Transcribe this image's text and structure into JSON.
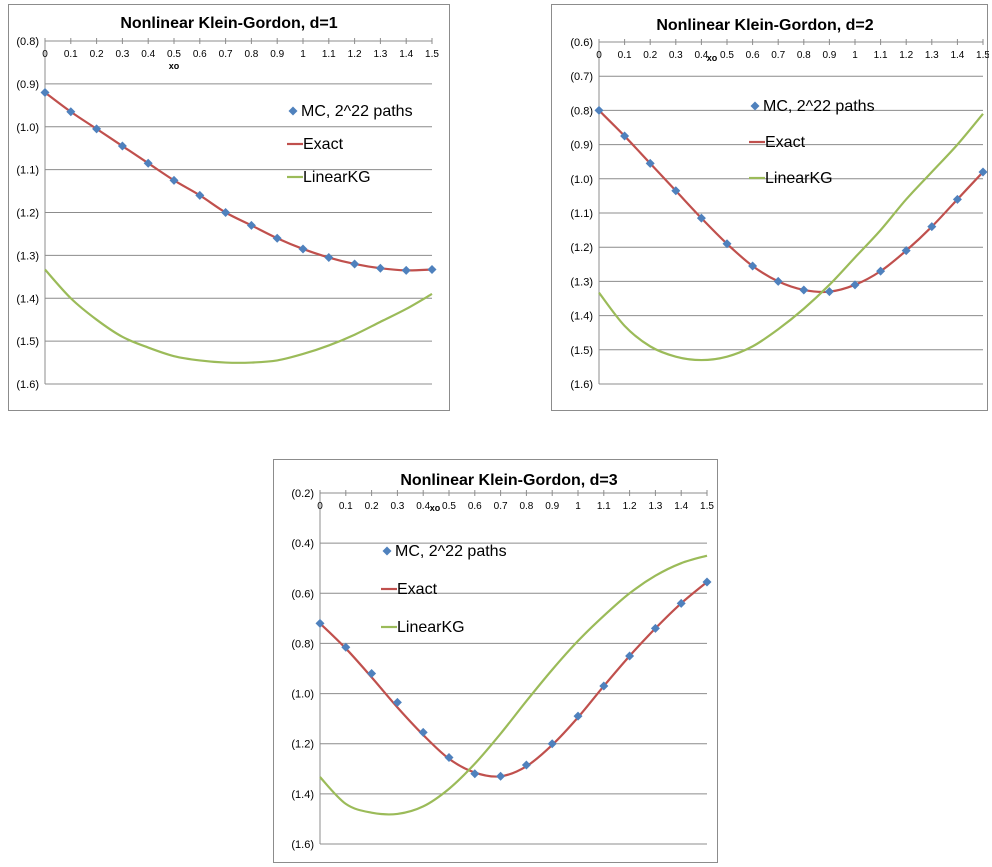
{
  "colors": {
    "mc": "#4f81bd",
    "exact": "#c0504d",
    "linear": "#9bbb59"
  },
  "legend": [
    "MC, 2^22 paths",
    "Exact",
    "LinearKG"
  ],
  "chart_data": [
    {
      "type": "line",
      "title": "Nonlinear Klein-Gordon, d=1",
      "xlabel": "xo",
      "x": [
        0,
        0.1,
        0.2,
        0.3,
        0.4,
        0.5,
        0.6,
        0.7,
        0.8,
        0.9,
        1,
        1.1,
        1.2,
        1.3,
        1.4,
        1.5
      ],
      "x_tick_labels": [
        "0",
        "0.1",
        "0.2",
        "0.3",
        "0.4",
        "0.5",
        "0.6",
        "0.7",
        "0.8",
        "0.9",
        "1",
        "1.1",
        "1.2",
        "1.3",
        "1.4",
        "1.5"
      ],
      "ylim": [
        -1.6,
        -0.8
      ],
      "y_ticks": [
        -0.8,
        -0.9,
        -1.0,
        -1.1,
        -1.2,
        -1.3,
        -1.4,
        -1.5,
        -1.6
      ],
      "y_tick_labels": [
        "(0.8)",
        "(0.9)",
        "(1.0)",
        "(1.1)",
        "(1.2)",
        "(1.3)",
        "(1.4)",
        "(1.5)",
        "(1.6)"
      ],
      "grid": true,
      "legend_position": "right, upper half",
      "series": [
        {
          "name": "MC, 2^22 paths",
          "marker": "diamond",
          "values": [
            -0.92,
            -0.965,
            -1.005,
            -1.045,
            -1.085,
            -1.125,
            -1.16,
            -1.2,
            -1.23,
            -1.26,
            -1.285,
            -1.305,
            -1.32,
            -1.33,
            -1.335,
            -1.333
          ]
        },
        {
          "name": "Exact",
          "marker": "none",
          "values": [
            -0.92,
            -0.965,
            -1.005,
            -1.045,
            -1.085,
            -1.125,
            -1.16,
            -1.2,
            -1.23,
            -1.26,
            -1.285,
            -1.305,
            -1.32,
            -1.33,
            -1.335,
            -1.333
          ]
        },
        {
          "name": "LinearKG",
          "marker": "none",
          "values": [
            -1.333,
            -1.4,
            -1.45,
            -1.49,
            -1.515,
            -1.535,
            -1.545,
            -1.55,
            -1.55,
            -1.545,
            -1.53,
            -1.51,
            -1.485,
            -1.455,
            -1.425,
            -1.39
          ]
        }
      ]
    },
    {
      "type": "line",
      "title": "Nonlinear Klein-Gordon, d=2",
      "xlabel": "xo",
      "x": [
        0,
        0.1,
        0.2,
        0.3,
        0.4,
        0.5,
        0.6,
        0.7,
        0.8,
        0.9,
        1,
        1.1,
        1.2,
        1.3,
        1.4,
        1.5
      ],
      "x_tick_labels": [
        "0",
        "0.1",
        "0.2",
        "0.3",
        "0.4",
        "0.5",
        "0.6",
        "0.7",
        "0.8",
        "0.9",
        "1",
        "1.1",
        "1.2",
        "1.3",
        "1.4",
        "1.5"
      ],
      "ylim": [
        -1.6,
        -0.6
      ],
      "y_ticks": [
        -0.6,
        -0.7,
        -0.8,
        -0.9,
        -1.0,
        -1.1,
        -1.2,
        -1.3,
        -1.4,
        -1.5,
        -1.6
      ],
      "y_tick_labels": [
        "(0.6)",
        "(0.7)",
        "(0.8)",
        "(0.9)",
        "(1.0)",
        "(1.1)",
        "(1.2)",
        "(1.3)",
        "(1.4)",
        "(1.5)",
        "(1.6)"
      ],
      "grid": true,
      "legend_position": "upper middle",
      "series": [
        {
          "name": "MC, 2^22 paths",
          "marker": "diamond",
          "values": [
            -0.8,
            -0.875,
            -0.955,
            -1.035,
            -1.115,
            -1.19,
            -1.255,
            -1.3,
            -1.325,
            -1.33,
            -1.31,
            -1.27,
            -1.21,
            -1.14,
            -1.06,
            -0.98
          ]
        },
        {
          "name": "Exact",
          "marker": "none",
          "values": [
            -0.8,
            -0.875,
            -0.955,
            -1.035,
            -1.115,
            -1.19,
            -1.255,
            -1.3,
            -1.325,
            -1.33,
            -1.31,
            -1.27,
            -1.21,
            -1.14,
            -1.06,
            -0.98
          ]
        },
        {
          "name": "LinearKG",
          "marker": "none",
          "values": [
            -1.333,
            -1.43,
            -1.49,
            -1.52,
            -1.53,
            -1.52,
            -1.49,
            -1.44,
            -1.38,
            -1.31,
            -1.23,
            -1.15,
            -1.06,
            -0.98,
            -0.9,
            -0.81
          ]
        }
      ]
    },
    {
      "type": "line",
      "title": "Nonlinear Klein-Gordon, d=3",
      "xlabel": "xo",
      "x": [
        0,
        0.1,
        0.2,
        0.3,
        0.4,
        0.5,
        0.6,
        0.7,
        0.8,
        0.9,
        1,
        1.1,
        1.2,
        1.3,
        1.4,
        1.5
      ],
      "x_tick_labels": [
        "0",
        "0.1",
        "0.2",
        "0.3",
        "0.4",
        "0.5",
        "0.6",
        "0.7",
        "0.8",
        "0.9",
        "1",
        "1.1",
        "1.2",
        "1.3",
        "1.4",
        "1.5"
      ],
      "ylim": [
        -1.6,
        -0.2
      ],
      "y_ticks": [
        -0.2,
        -0.4,
        -0.6,
        -0.8,
        -1.0,
        -1.2,
        -1.4,
        -1.6
      ],
      "y_tick_labels": [
        "(0.2)",
        "(0.4)",
        "(0.6)",
        "(0.8)",
        "(1.0)",
        "(1.2)",
        "(1.4)",
        "(1.6)"
      ],
      "grid": true,
      "legend_position": "upper left",
      "series": [
        {
          "name": "MC, 2^22 paths",
          "marker": "diamond",
          "values": [
            -0.72,
            -0.815,
            -0.92,
            -1.035,
            -1.155,
            -1.255,
            -1.32,
            -1.33,
            -1.285,
            -1.2,
            -1.09,
            -0.97,
            -0.85,
            -0.74,
            -0.64,
            -0.555
          ]
        },
        {
          "name": "Exact",
          "marker": "none",
          "values": [
            -0.72,
            -0.82,
            -0.935,
            -1.055,
            -1.165,
            -1.26,
            -1.315,
            -1.33,
            -1.29,
            -1.205,
            -1.095,
            -0.97,
            -0.85,
            -0.74,
            -0.64,
            -0.555
          ]
        },
        {
          "name": "LinearKG",
          "marker": "none",
          "values": [
            -1.333,
            -1.44,
            -1.475,
            -1.48,
            -1.45,
            -1.38,
            -1.28,
            -1.16,
            -1.03,
            -0.905,
            -0.79,
            -0.69,
            -0.6,
            -0.53,
            -0.48,
            -0.45
          ]
        }
      ]
    }
  ]
}
